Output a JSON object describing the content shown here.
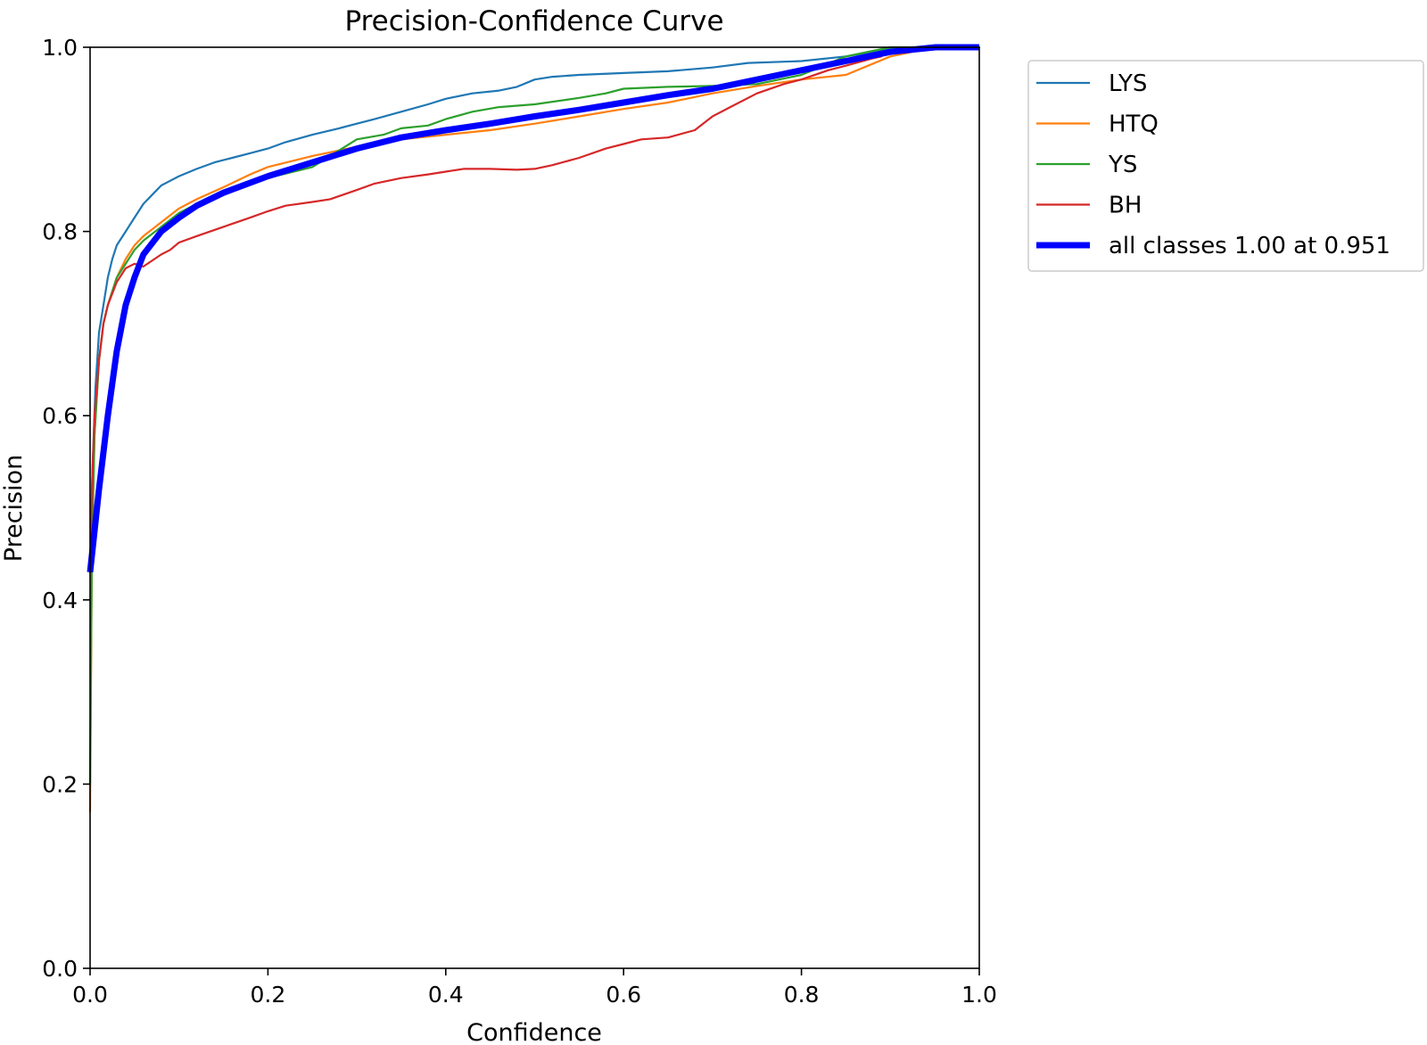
{
  "chart_data": {
    "type": "line",
    "title": "Precision-Confidence Curve",
    "xlabel": "Confidence",
    "ylabel": "Precision",
    "xlim": [
      0,
      1
    ],
    "ylim": [
      0,
      1
    ],
    "xticks": [
      "0.0",
      "0.2",
      "0.4",
      "0.6",
      "0.8",
      "1.0"
    ],
    "yticks": [
      "0.0",
      "0.2",
      "0.4",
      "0.6",
      "0.8",
      "1.0"
    ],
    "grid": false,
    "legend_position": "outside-top-right",
    "series": [
      {
        "name": "LYS",
        "color": "#1f77b4",
        "x": [
          0.0,
          0.003,
          0.006,
          0.01,
          0.015,
          0.02,
          0.025,
          0.03,
          0.04,
          0.05,
          0.06,
          0.07,
          0.08,
          0.09,
          0.1,
          0.12,
          0.14,
          0.16,
          0.18,
          0.2,
          0.22,
          0.25,
          0.28,
          0.3,
          0.32,
          0.35,
          0.38,
          0.4,
          0.43,
          0.46,
          0.48,
          0.5,
          0.52,
          0.55,
          0.6,
          0.65,
          0.7,
          0.74,
          0.8,
          0.85,
          0.9,
          0.95,
          1.0
        ],
        "y": [
          0.43,
          0.55,
          0.63,
          0.69,
          0.72,
          0.75,
          0.77,
          0.785,
          0.8,
          0.815,
          0.83,
          0.84,
          0.85,
          0.855,
          0.86,
          0.868,
          0.875,
          0.88,
          0.885,
          0.89,
          0.897,
          0.905,
          0.912,
          0.917,
          0.922,
          0.93,
          0.938,
          0.944,
          0.95,
          0.953,
          0.957,
          0.965,
          0.968,
          0.97,
          0.972,
          0.974,
          0.978,
          0.983,
          0.985,
          0.99,
          0.998,
          1.0,
          1.0
        ]
      },
      {
        "name": "HTQ",
        "color": "#ff7f0e",
        "x": [
          0.0,
          0.002,
          0.005,
          0.01,
          0.015,
          0.02,
          0.03,
          0.04,
          0.05,
          0.06,
          0.08,
          0.1,
          0.12,
          0.15,
          0.18,
          0.2,
          0.25,
          0.3,
          0.35,
          0.4,
          0.45,
          0.5,
          0.55,
          0.6,
          0.65,
          0.7,
          0.75,
          0.8,
          0.85,
          0.9,
          0.95,
          1.0
        ],
        "y": [
          0.17,
          0.45,
          0.58,
          0.66,
          0.7,
          0.72,
          0.75,
          0.77,
          0.785,
          0.795,
          0.81,
          0.825,
          0.835,
          0.848,
          0.862,
          0.87,
          0.882,
          0.892,
          0.9,
          0.905,
          0.91,
          0.917,
          0.925,
          0.933,
          0.94,
          0.95,
          0.958,
          0.965,
          0.97,
          0.99,
          1.0,
          1.0
        ]
      },
      {
        "name": "YS",
        "color": "#2ca02c",
        "x": [
          0.0,
          0.002,
          0.005,
          0.01,
          0.015,
          0.02,
          0.03,
          0.04,
          0.05,
          0.06,
          0.08,
          0.1,
          0.12,
          0.15,
          0.18,
          0.2,
          0.25,
          0.3,
          0.33,
          0.35,
          0.38,
          0.4,
          0.43,
          0.46,
          0.5,
          0.55,
          0.58,
          0.6,
          0.65,
          0.7,
          0.75,
          0.8,
          0.85,
          0.9,
          0.95,
          1.0
        ],
        "y": [
          0.2,
          0.45,
          0.58,
          0.66,
          0.7,
          0.72,
          0.75,
          0.765,
          0.78,
          0.79,
          0.805,
          0.82,
          0.83,
          0.842,
          0.852,
          0.858,
          0.87,
          0.9,
          0.905,
          0.912,
          0.915,
          0.922,
          0.93,
          0.935,
          0.938,
          0.945,
          0.95,
          0.955,
          0.957,
          0.958,
          0.96,
          0.97,
          0.99,
          1.0,
          1.0,
          1.0
        ]
      },
      {
        "name": "BH",
        "color": "#d62728",
        "x": [
          0.0,
          0.002,
          0.005,
          0.01,
          0.015,
          0.02,
          0.03,
          0.04,
          0.05,
          0.06,
          0.08,
          0.09,
          0.1,
          0.12,
          0.15,
          0.18,
          0.2,
          0.22,
          0.25,
          0.27,
          0.3,
          0.32,
          0.35,
          0.38,
          0.4,
          0.42,
          0.45,
          0.48,
          0.5,
          0.52,
          0.55,
          0.58,
          0.6,
          0.62,
          0.65,
          0.68,
          0.7,
          0.72,
          0.75,
          0.78,
          0.8,
          0.83,
          0.85,
          0.88,
          0.89
        ],
        "y": [
          0.43,
          0.52,
          0.6,
          0.66,
          0.7,
          0.72,
          0.745,
          0.76,
          0.765,
          0.762,
          0.775,
          0.78,
          0.788,
          0.795,
          0.805,
          0.815,
          0.822,
          0.828,
          0.832,
          0.835,
          0.845,
          0.852,
          0.858,
          0.862,
          0.865,
          0.868,
          0.868,
          0.867,
          0.868,
          0.872,
          0.88,
          0.89,
          0.895,
          0.9,
          0.902,
          0.91,
          0.925,
          0.935,
          0.95,
          0.96,
          0.965,
          0.975,
          0.98,
          0.988,
          0.99
        ]
      },
      {
        "name": "all classes 1.00 at 0.951",
        "color": "#0000ff",
        "x": [
          0.0,
          0.01,
          0.02,
          0.03,
          0.04,
          0.05,
          0.06,
          0.08,
          0.1,
          0.12,
          0.15,
          0.2,
          0.25,
          0.3,
          0.35,
          0.4,
          0.45,
          0.5,
          0.55,
          0.6,
          0.65,
          0.7,
          0.75,
          0.8,
          0.85,
          0.9,
          0.951,
          1.0
        ],
        "y": [
          0.43,
          0.52,
          0.6,
          0.67,
          0.72,
          0.75,
          0.775,
          0.8,
          0.815,
          0.828,
          0.842,
          0.86,
          0.875,
          0.89,
          0.902,
          0.91,
          0.917,
          0.925,
          0.932,
          0.94,
          0.948,
          0.955,
          0.965,
          0.975,
          0.985,
          0.995,
          1.0,
          1.0
        ]
      }
    ]
  }
}
